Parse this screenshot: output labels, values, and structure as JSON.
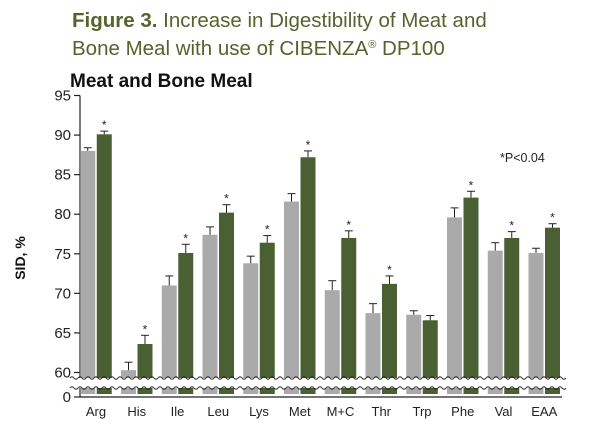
{
  "figure": {
    "label": "Figure 3.",
    "title_line1": "Increase in Digestibility of Meat and",
    "title_line2_pre": "Bone Meal with use of CIBENZA",
    "title_reg": "®",
    "title_line2_post": " DP100"
  },
  "colors": {
    "title": "#55632d",
    "series_control": "#aaaaaa",
    "series_treated": "#4a6033",
    "axis": "#222222"
  },
  "chart_data": {
    "type": "bar",
    "title": "Meat and Bone Meal",
    "ylabel": "SID, %",
    "xlabel": "",
    "ylim": [
      60,
      95
    ],
    "axis_break": true,
    "yticks": [
      95,
      90,
      85,
      80,
      75,
      70,
      65,
      60,
      0
    ],
    "categories": [
      "Arg",
      "His",
      "Ile",
      "Leu",
      "Lys",
      "Met",
      "M+C",
      "Thr",
      "Trp",
      "Phe",
      "Val",
      "EAA"
    ],
    "series": [
      {
        "values": [
          88.0,
          60.3,
          71.0,
          77.4,
          73.8,
          81.6,
          70.4,
          67.5,
          67.3,
          79.6,
          75.4,
          75.1
        ],
        "errors": [
          0.4,
          1.0,
          1.2,
          1.0,
          0.9,
          1.0,
          1.2,
          1.2,
          0.5,
          1.2,
          1.0,
          0.6
        ]
      },
      {
        "values": [
          90.1,
          63.6,
          75.1,
          80.2,
          76.4,
          87.2,
          77.0,
          71.2,
          66.6,
          82.1,
          77.0,
          78.3
        ],
        "errors": [
          0.4,
          1.1,
          1.1,
          1.0,
          0.9,
          0.8,
          0.9,
          1.0,
          0.6,
          0.8,
          0.8,
          0.5
        ]
      }
    ],
    "significant": [
      true,
      true,
      true,
      true,
      true,
      true,
      true,
      true,
      false,
      true,
      true,
      true
    ],
    "significance_marker": "*",
    "annotation": "*P<0.04"
  }
}
